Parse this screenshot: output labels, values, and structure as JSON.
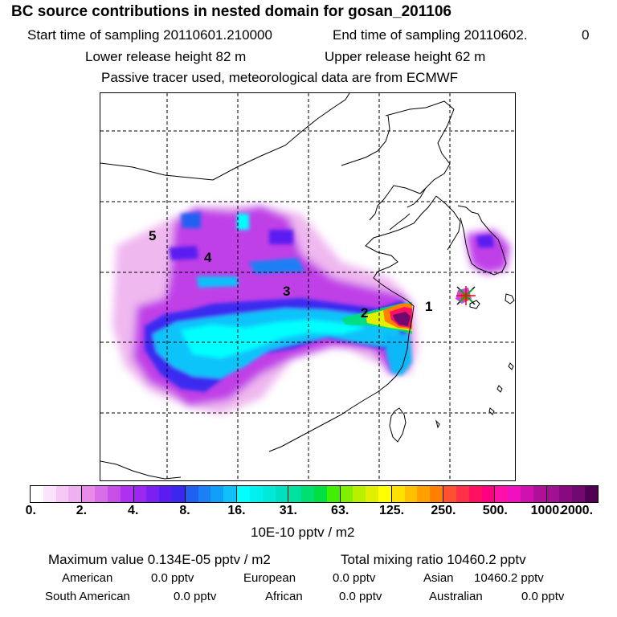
{
  "header": {
    "title": "BC  source contributions in nested domain for gosan_201106",
    "start_sampling": "Start time of sampling 20110601.210000",
    "end_sampling": "End time of sampling 20110602.",
    "end_sampling_suffix": "0",
    "lower_release": "Lower release height   82 m",
    "upper_release": "Upper release height   62 m",
    "tracer_note": "Passive tracer used, meteorological data are from ECMWF"
  },
  "map": {
    "region_labels": [
      "1",
      "2",
      "3",
      "4",
      "5"
    ],
    "receptor_marker": "gosan-receptor"
  },
  "colorbar": {
    "colors": [
      [
        "#ffffff",
        "#fbe4fb",
        "#f5c8f5",
        "#efb0ef"
      ],
      [
        "#e88ae8",
        "#d96ee8",
        "#c84ee8",
        "#b030f0"
      ],
      [
        "#9a28f0",
        "#7a20f0",
        "#5a1cf0",
        "#3a28f0"
      ],
      [
        "#2060f0",
        "#1a80f4",
        "#10a0f8",
        "#10c0fa"
      ],
      [
        "#00ffff",
        "#00f0f0",
        "#00e8d8",
        "#00e0c0"
      ],
      [
        "#00e0a0",
        "#00e070",
        "#00e040",
        "#40f000"
      ],
      [
        "#80f000",
        "#b8f000",
        "#e0f000",
        "#ffff00"
      ],
      [
        "#ffe000",
        "#ffc000",
        "#ffa000",
        "#ff8000"
      ],
      [
        "#ff5030",
        "#ff3048",
        "#ff1060",
        "#ff0080"
      ],
      [
        "#ff10a8",
        "#f010c0",
        "#d010b0",
        "#b01098"
      ],
      [
        "#a01090",
        "#880880",
        "#700870",
        "#500050"
      ]
    ],
    "ticks": [
      "0.",
      "2.",
      "4.",
      "8.",
      "16.",
      "31.",
      "63.",
      "125.",
      "250.",
      "500.",
      "1000.",
      "2000."
    ],
    "unit": "10E-10 pptv / m2"
  },
  "summary": {
    "max_value": "Maximum value  0.134E-05 pptv / m2",
    "total_mixing": "Total mixing ratio    10460.2 pptv",
    "rows": [
      [
        {
          "label": "American",
          "value": "0.0 pptv"
        },
        {
          "label": "European",
          "value": "0.0 pptv"
        },
        {
          "label": "Asian",
          "value": "10460.2 pptv"
        }
      ],
      [
        {
          "label": "South American",
          "value": "0.0 pptv"
        },
        {
          "label": "African",
          "value": "0.0 pptv"
        },
        {
          "label": "Australian",
          "value": "0.0 pptv"
        }
      ]
    ]
  }
}
